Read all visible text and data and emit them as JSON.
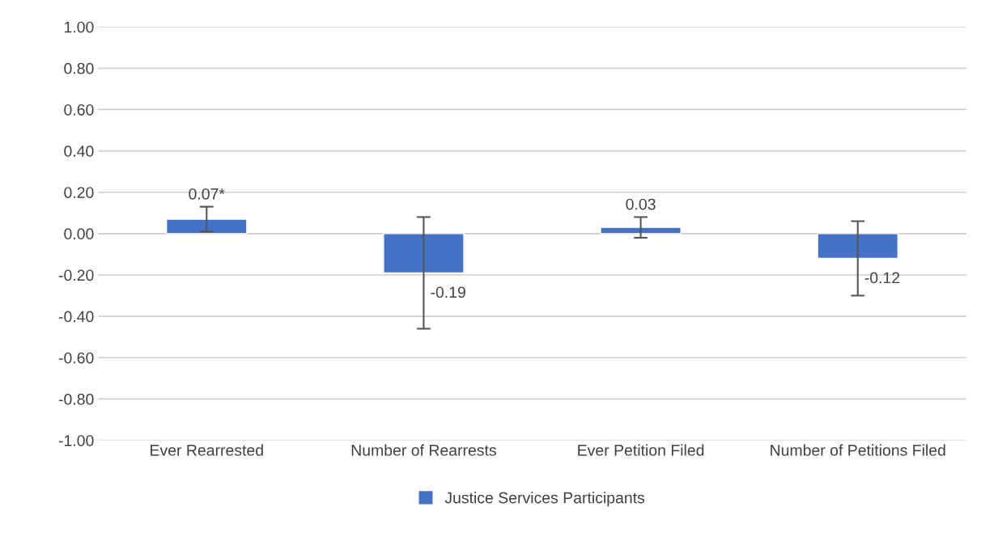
{
  "chart_data": {
    "type": "bar",
    "categories": [
      "Ever Rearrested",
      "Number of Rearrests",
      "Ever Petition Filed",
      "Number of Petitions Filed"
    ],
    "series": [
      {
        "name": "Justice Services Participants",
        "color": "#4472c4",
        "values": [
          0.07,
          -0.19,
          0.03,
          -0.12
        ],
        "errors": [
          0.06,
          0.27,
          0.05,
          0.18
        ],
        "value_labels": [
          "0.07*",
          "-0.19",
          "0.03",
          "-0.12"
        ]
      }
    ],
    "ylim": [
      -1.0,
      1.0
    ],
    "yticks": [
      {
        "value": -1.0,
        "label": "-1.00"
      },
      {
        "value": -0.8,
        "label": "-0.80"
      },
      {
        "value": -0.6,
        "label": "-0.60"
      },
      {
        "value": -0.4,
        "label": "-0.40"
      },
      {
        "value": -0.2,
        "label": "-0.20"
      },
      {
        "value": 0.0,
        "label": "0.00"
      },
      {
        "value": 0.2,
        "label": "0.20"
      },
      {
        "value": 0.4,
        "label": "0.40"
      },
      {
        "value": 0.6,
        "label": "0.60"
      },
      {
        "value": 0.8,
        "label": "0.80"
      },
      {
        "value": 1.0,
        "label": "1.00"
      }
    ],
    "grid": "y",
    "legend": "bottom"
  }
}
